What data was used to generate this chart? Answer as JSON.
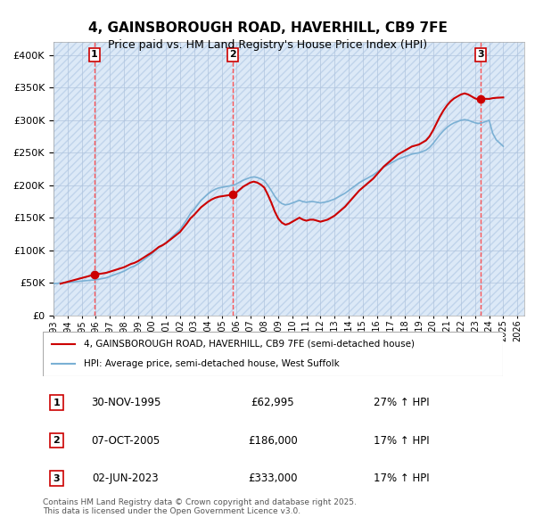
{
  "title": "4, GAINSBOROUGH ROAD, HAVERHILL, CB9 7FE",
  "subtitle": "Price paid vs. HM Land Registry's House Price Index (HPI)",
  "ylim": [
    0,
    420000
  ],
  "yticks": [
    0,
    50000,
    100000,
    150000,
    200000,
    250000,
    300000,
    350000,
    400000
  ],
  "xlim_start": 1993.0,
  "xlim_end": 2026.5,
  "background_color": "#ffffff",
  "plot_bg_color": "#dce9f7",
  "hatch_color": "#c0d4eb",
  "grid_color": "#b0c4de",
  "legend_label_red": "4, GAINSBOROUGH ROAD, HAVERHILL, CB9 7FE (semi-detached house)",
  "legend_label_blue": "HPI: Average price, semi-detached house, West Suffolk",
  "footnote": "Contains HM Land Registry data © Crown copyright and database right 2025.\nThis data is licensed under the Open Government Licence v3.0.",
  "transactions": [
    {
      "num": 1,
      "date_str": "30-NOV-1995",
      "price": 62995,
      "pct": "27% ↑ HPI",
      "year": 1995.92
    },
    {
      "num": 2,
      "date_str": "07-OCT-2005",
      "price": 186000,
      "pct": "17% ↑ HPI",
      "year": 2005.77
    },
    {
      "num": 3,
      "date_str": "02-JUN-2023",
      "price": 333000,
      "pct": "17% ↑ HPI",
      "year": 2023.42
    }
  ],
  "hpi_line_color": "#7ab0d4",
  "price_line_color": "#cc0000",
  "dashed_vline_color": "#ff4444",
  "hpi_data_x": [
    1993.0,
    1993.25,
    1993.5,
    1993.75,
    1994.0,
    1994.25,
    1994.5,
    1994.75,
    1995.0,
    1995.25,
    1995.5,
    1995.75,
    1996.0,
    1996.25,
    1996.5,
    1996.75,
    1997.0,
    1997.25,
    1997.5,
    1997.75,
    1998.0,
    1998.25,
    1998.5,
    1998.75,
    1999.0,
    1999.25,
    1999.5,
    1999.75,
    2000.0,
    2000.25,
    2000.5,
    2000.75,
    2001.0,
    2001.25,
    2001.5,
    2001.75,
    2002.0,
    2002.25,
    2002.5,
    2002.75,
    2003.0,
    2003.25,
    2003.5,
    2003.75,
    2004.0,
    2004.25,
    2004.5,
    2004.75,
    2005.0,
    2005.25,
    2005.5,
    2005.75,
    2006.0,
    2006.25,
    2006.5,
    2006.75,
    2007.0,
    2007.25,
    2007.5,
    2007.75,
    2008.0,
    2008.25,
    2008.5,
    2008.75,
    2009.0,
    2009.25,
    2009.5,
    2009.75,
    2010.0,
    2010.25,
    2010.5,
    2010.75,
    2011.0,
    2011.25,
    2011.5,
    2011.75,
    2012.0,
    2012.25,
    2012.5,
    2012.75,
    2013.0,
    2013.25,
    2013.5,
    2013.75,
    2014.0,
    2014.25,
    2014.5,
    2014.75,
    2015.0,
    2015.25,
    2015.5,
    2015.75,
    2016.0,
    2016.25,
    2016.5,
    2016.75,
    2017.0,
    2017.25,
    2017.5,
    2017.75,
    2018.0,
    2018.25,
    2018.5,
    2018.75,
    2019.0,
    2019.25,
    2019.5,
    2019.75,
    2020.0,
    2020.25,
    2020.5,
    2020.75,
    2021.0,
    2021.25,
    2021.5,
    2021.75,
    2022.0,
    2022.25,
    2022.5,
    2022.75,
    2023.0,
    2023.25,
    2023.5,
    2023.75,
    2024.0,
    2024.25,
    2024.5,
    2024.75,
    2025.0
  ],
  "hpi_data_y": [
    49000,
    49500,
    50000,
    50500,
    51000,
    51500,
    52000,
    52500,
    53000,
    53500,
    54000,
    54500,
    55000,
    56000,
    57000,
    58000,
    60000,
    62000,
    64000,
    66000,
    68000,
    71000,
    74000,
    76000,
    79000,
    83000,
    87000,
    91000,
    95000,
    100000,
    105000,
    108000,
    112000,
    117000,
    122000,
    127000,
    132000,
    140000,
    148000,
    157000,
    163000,
    170000,
    177000,
    182000,
    187000,
    191000,
    194000,
    196000,
    197000,
    198000,
    199000,
    200000,
    202000,
    205000,
    208000,
    210000,
    212000,
    213000,
    212000,
    210000,
    207000,
    200000,
    192000,
    183000,
    176000,
    172000,
    170000,
    171000,
    173000,
    175000,
    177000,
    175000,
    174000,
    175000,
    175000,
    174000,
    173000,
    174000,
    175000,
    177000,
    179000,
    182000,
    185000,
    188000,
    192000,
    196000,
    200000,
    204000,
    207000,
    210000,
    213000,
    216000,
    220000,
    224000,
    228000,
    231000,
    234000,
    237000,
    240000,
    242000,
    244000,
    246000,
    248000,
    249000,
    250000,
    252000,
    254000,
    258000,
    264000,
    271000,
    278000,
    284000,
    289000,
    293000,
    296000,
    298000,
    300000,
    301000,
    300000,
    298000,
    296000,
    295000,
    296000,
    298000,
    300000,
    280000,
    270000,
    265000,
    260000
  ],
  "price_data_x": [
    1993.5,
    1995.92,
    2005.77,
    2023.42,
    2025.0
  ],
  "price_data_y": [
    49000,
    62995,
    186000,
    333000,
    335000
  ]
}
